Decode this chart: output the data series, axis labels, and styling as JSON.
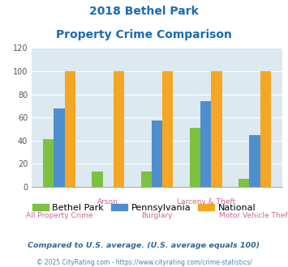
{
  "title_line1": "2018 Bethel Park",
  "title_line2": "Property Crime Comparison",
  "categories": [
    "All Property Crime",
    "Arson",
    "Burglary",
    "Larceny & Theft",
    "Motor Vehicle Theft"
  ],
  "bethel_park": [
    41,
    13,
    13,
    51,
    7
  ],
  "pennsylvania": [
    68,
    0,
    57,
    74,
    45
  ],
  "national": [
    100,
    100,
    100,
    100,
    100
  ],
  "color_bethel": "#7dc142",
  "color_pa": "#4d8fcc",
  "color_national": "#f5a623",
  "ylim": [
    0,
    120
  ],
  "yticks": [
    0,
    20,
    40,
    60,
    80,
    100,
    120
  ],
  "bg_color": "#dce9f0",
  "title_color": "#1a6bb5",
  "xlabel_color": "#cc6699",
  "legend_label1": "Bethel Park",
  "legend_label2": "Pennsylvania",
  "legend_label3": "National",
  "footer1": "Compared to U.S. average. (U.S. average equals 100)",
  "footer2": "© 2025 CityRating.com - https://www.cityrating.com/crime-statistics/",
  "footer1_color": "#336699",
  "footer2_color": "#4488bb",
  "bar_width": 0.22
}
